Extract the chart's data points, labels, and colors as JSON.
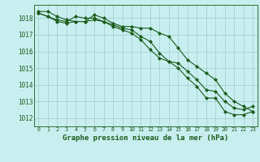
{
  "title": "Graphe pression niveau de la mer (hPa)",
  "bg_color": "#c8eef0",
  "grid_color": "#a0cccc",
  "line_color": "#1a5c1a",
  "marker_color": "#1a5c1a",
  "xlim": [
    -0.5,
    23.5
  ],
  "ylim": [
    1011.5,
    1018.8
  ],
  "yticks": [
    1012,
    1013,
    1014,
    1015,
    1016,
    1017,
    1018
  ],
  "xticks": [
    0,
    1,
    2,
    3,
    4,
    5,
    6,
    7,
    8,
    9,
    10,
    11,
    12,
    13,
    14,
    15,
    16,
    17,
    18,
    19,
    20,
    21,
    22,
    23
  ],
  "series1": [
    1018.4,
    1018.4,
    1018.1,
    1017.9,
    1017.8,
    1017.8,
    1018.2,
    1018.0,
    1017.7,
    1017.5,
    1017.5,
    1017.4,
    1017.4,
    1017.1,
    1016.9,
    1016.2,
    1015.5,
    1015.1,
    1014.7,
    1014.3,
    1013.5,
    1013.0,
    1012.7,
    1012.4
  ],
  "series2": [
    1018.3,
    1018.1,
    1017.8,
    1017.7,
    1017.8,
    1017.8,
    1017.9,
    1017.8,
    1017.6,
    1017.4,
    1017.3,
    1016.9,
    1016.6,
    1015.9,
    1015.4,
    1015.0,
    1014.4,
    1013.9,
    1013.2,
    1013.2,
    1012.4,
    1012.2,
    1012.2,
    1012.4
  ],
  "series3": [
    1018.3,
    1018.1,
    1017.9,
    1017.8,
    1018.1,
    1018.0,
    1018.0,
    1017.8,
    1017.5,
    1017.3,
    1017.1,
    1016.7,
    1016.1,
    1015.6,
    1015.4,
    1015.3,
    1014.8,
    1014.3,
    1013.7,
    1013.6,
    1013.0,
    1012.6,
    1012.5,
    1012.7
  ],
  "xlabel_fontsize": 6.5,
  "ylabel_fontsize": 5.5,
  "tick_fontsize": 4.8
}
